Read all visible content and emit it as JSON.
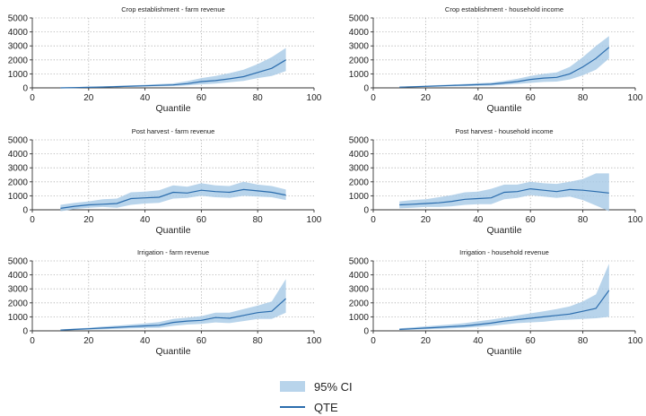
{
  "legend": {
    "ci_label": "95% CI",
    "qte_label": "QTE",
    "ci_color": "#a8cbe6",
    "qte_color": "#2a6cad"
  },
  "chart_data": [
    {
      "type": "area",
      "title": "Crop establishment - farm revenue",
      "xlabel": "Quantile",
      "xlim": [
        0,
        100
      ],
      "ylim": [
        0,
        5000
      ],
      "xticks": [
        "0",
        "20",
        "40",
        "60",
        "80",
        "100"
      ],
      "yticks": [
        "0",
        "1000",
        "2000",
        "3000",
        "4000",
        "5000"
      ],
      "x": [
        10,
        15,
        20,
        25,
        30,
        35,
        40,
        45,
        50,
        55,
        60,
        65,
        70,
        75,
        80,
        85,
        90
      ],
      "series": [
        {
          "name": "QTE",
          "values": [
            0,
            20,
            40,
            60,
            90,
            120,
            150,
            180,
            210,
            300,
            450,
            520,
            650,
            800,
            1100,
            1400,
            2000
          ]
        },
        {
          "name": "95% CI",
          "lower": [
            -30,
            -10,
            10,
            30,
            50,
            70,
            90,
            110,
            130,
            170,
            250,
            310,
            400,
            500,
            700,
            850,
            1200
          ],
          "upper": [
            40,
            60,
            80,
            110,
            140,
            180,
            220,
            270,
            320,
            480,
            700,
            850,
            1050,
            1300,
            1700,
            2200,
            2850
          ]
        }
      ]
    },
    {
      "type": "area",
      "title": "Crop establishment - household income",
      "xlabel": "Quantile",
      "xlim": [
        0,
        100
      ],
      "ylim": [
        0,
        5000
      ],
      "xticks": [
        "0",
        "20",
        "40",
        "60",
        "80",
        "100"
      ],
      "yticks": [
        "0",
        "1000",
        "2000",
        "3000",
        "4000",
        "5000"
      ],
      "x": [
        10,
        15,
        20,
        25,
        30,
        35,
        40,
        45,
        50,
        55,
        60,
        65,
        70,
        75,
        80,
        85,
        90
      ],
      "series": [
        {
          "name": "QTE",
          "values": [
            50,
            80,
            110,
            140,
            170,
            200,
            230,
            260,
            350,
            450,
            600,
            700,
            750,
            1000,
            1500,
            2100,
            2900
          ]
        },
        {
          "name": "95% CI",
          "lower": [
            20,
            40,
            60,
            80,
            100,
            120,
            140,
            160,
            220,
            280,
            350,
            420,
            450,
            600,
            900,
            1300,
            2100
          ],
          "upper": [
            80,
            120,
            160,
            200,
            240,
            280,
            330,
            380,
            500,
            650,
            850,
            1000,
            1100,
            1500,
            2200,
            3000,
            3700
          ]
        }
      ]
    },
    {
      "type": "area",
      "title": "Post harvest - farm revenue",
      "xlabel": "Quantile",
      "xlim": [
        0,
        100
      ],
      "ylim": [
        0,
        5000
      ],
      "xticks": [
        "0",
        "20",
        "40",
        "60",
        "80",
        "100"
      ],
      "yticks": [
        "0",
        "1000",
        "2000",
        "3000",
        "4000",
        "5000"
      ],
      "x": [
        10,
        15,
        20,
        25,
        30,
        35,
        40,
        45,
        50,
        55,
        60,
        65,
        70,
        75,
        80,
        85,
        90
      ],
      "series": [
        {
          "name": "QTE",
          "values": [
            100,
            250,
            350,
            400,
            450,
            800,
            850,
            900,
            1250,
            1200,
            1400,
            1300,
            1250,
            1450,
            1350,
            1250,
            1050
          ]
        },
        {
          "name": "95% CI",
          "lower": [
            -100,
            50,
            150,
            200,
            150,
            350,
            450,
            500,
            800,
            850,
            1000,
            900,
            850,
            1000,
            950,
            900,
            700
          ],
          "upper": [
            350,
            500,
            600,
            750,
            800,
            1250,
            1300,
            1400,
            1750,
            1650,
            1900,
            1750,
            1700,
            2000,
            1800,
            1700,
            1450
          ]
        }
      ]
    },
    {
      "type": "area",
      "title": "Post harvest - household income",
      "xlabel": "Quantile",
      "xlim": [
        0,
        100
      ],
      "ylim": [
        0,
        5000
      ],
      "xticks": [
        "0",
        "20",
        "40",
        "60",
        "80",
        "100"
      ],
      "yticks": [
        "0",
        "1000",
        "2000",
        "3000",
        "4000",
        "5000"
      ],
      "x": [
        10,
        15,
        20,
        25,
        30,
        35,
        40,
        45,
        50,
        55,
        60,
        65,
        70,
        75,
        80,
        85,
        90
      ],
      "series": [
        {
          "name": "QTE",
          "values": [
            350,
            400,
            450,
            500,
            600,
            750,
            800,
            850,
            1250,
            1300,
            1500,
            1400,
            1300,
            1450,
            1400,
            1300,
            1200
          ]
        },
        {
          "name": "95% CI",
          "lower": [
            100,
            150,
            200,
            200,
            250,
            350,
            400,
            400,
            750,
            850,
            1050,
            950,
            850,
            950,
            700,
            300,
            -100
          ],
          "upper": [
            600,
            700,
            750,
            900,
            1050,
            1250,
            1300,
            1500,
            1800,
            1800,
            2000,
            1900,
            1850,
            2000,
            2200,
            2600,
            2600
          ]
        }
      ]
    },
    {
      "type": "area",
      "title": "Irrigation - farm revenue",
      "xlabel": "Quantile",
      "xlim": [
        0,
        100
      ],
      "ylim": [
        0,
        5000
      ],
      "xticks": [
        "0",
        "20",
        "40",
        "60",
        "80",
        "100"
      ],
      "yticks": [
        "0",
        "1000",
        "2000",
        "3000",
        "4000",
        "5000"
      ],
      "x": [
        10,
        15,
        20,
        25,
        30,
        35,
        40,
        45,
        50,
        55,
        60,
        65,
        70,
        75,
        80,
        85,
        90
      ],
      "series": [
        {
          "name": "QTE",
          "values": [
            50,
            100,
            150,
            200,
            250,
            300,
            350,
            400,
            600,
            700,
            750,
            950,
            900,
            1100,
            1300,
            1400,
            2300
          ]
        },
        {
          "name": "95% CI",
          "lower": [
            20,
            50,
            80,
            110,
            140,
            170,
            200,
            220,
            350,
            450,
            500,
            600,
            550,
            700,
            850,
            850,
            1300
          ],
          "upper": [
            100,
            160,
            220,
            300,
            370,
            450,
            530,
            620,
            850,
            950,
            1050,
            1300,
            1300,
            1550,
            1800,
            2100,
            3700
          ]
        }
      ]
    },
    {
      "type": "area",
      "title": "Irrigation - household revenue",
      "xlabel": "Quantile",
      "xlim": [
        0,
        100
      ],
      "ylim": [
        0,
        5000
      ],
      "xticks": [
        "0",
        "20",
        "40",
        "60",
        "80",
        "100"
      ],
      "yticks": [
        "0",
        "1000",
        "2000",
        "3000",
        "4000",
        "5000"
      ],
      "x": [
        10,
        15,
        20,
        25,
        30,
        35,
        40,
        45,
        50,
        55,
        60,
        65,
        70,
        75,
        80,
        85,
        90
      ],
      "series": [
        {
          "name": "QTE",
          "values": [
            100,
            150,
            200,
            250,
            300,
            350,
            450,
            550,
            700,
            800,
            900,
            1000,
            1100,
            1200,
            1400,
            1600,
            2900
          ]
        },
        {
          "name": "95% CI",
          "lower": [
            50,
            80,
            110,
            140,
            180,
            220,
            280,
            350,
            450,
            550,
            600,
            650,
            750,
            800,
            850,
            900,
            1000
          ],
          "upper": [
            180,
            250,
            320,
            390,
            460,
            550,
            680,
            800,
            950,
            1100,
            1250,
            1400,
            1550,
            1750,
            2100,
            2600,
            4800
          ]
        }
      ]
    }
  ]
}
